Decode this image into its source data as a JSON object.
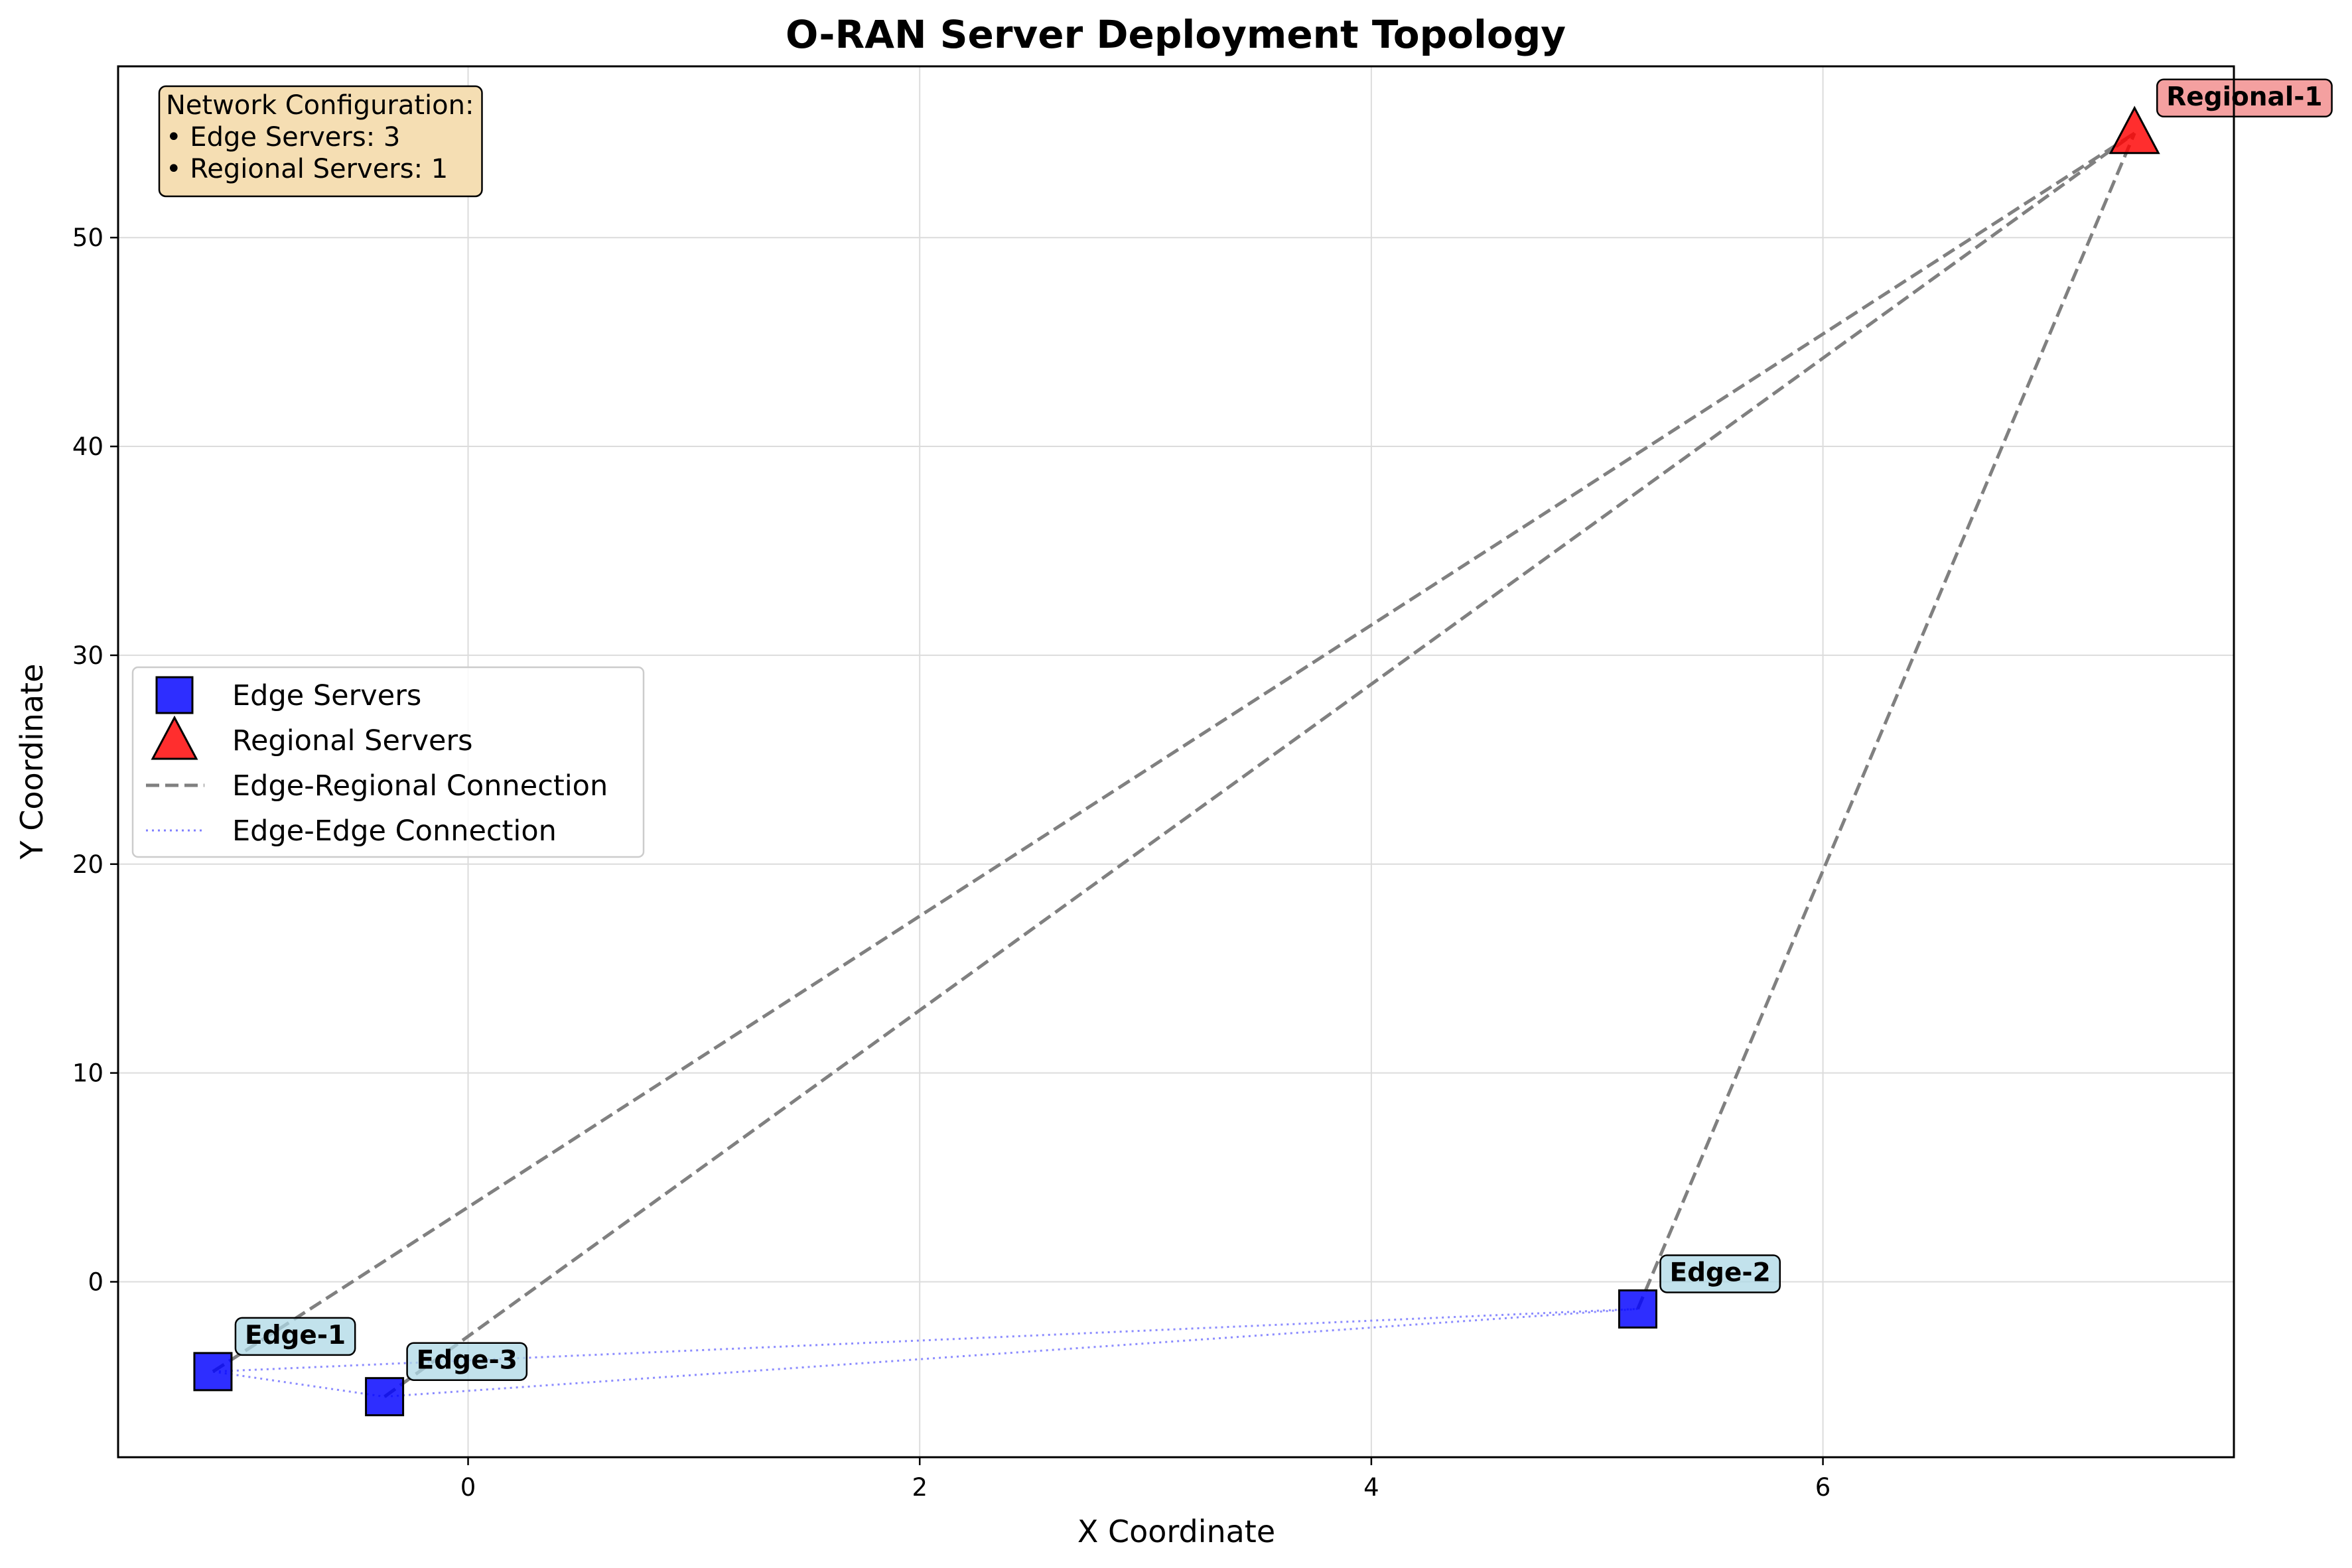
{
  "chart_data": {
    "type": "scatter",
    "title": "O-RAN Server Deployment Topology",
    "xlabel": "X Coordinate",
    "ylabel": "Y Coordinate",
    "xlim": [
      -1.55,
      7.82
    ],
    "ylim": [
      -8.4,
      58.2
    ],
    "xticks": [
      0,
      2,
      4,
      6
    ],
    "yticks": [
      0,
      10,
      20,
      30,
      40,
      50
    ],
    "grid": true,
    "legend_position": "center-left",
    "legend": [
      {
        "label": "Edge Servers",
        "kind": "square",
        "color": "#0000ff"
      },
      {
        "label": "Regional Servers",
        "kind": "triangle",
        "color": "#ff0000"
      },
      {
        "label": "Edge-Regional Connection",
        "kind": "dashed",
        "color": "#808080"
      },
      {
        "label": "Edge-Edge Connection",
        "kind": "dotted",
        "color": "#8080ff"
      }
    ],
    "edge_servers": [
      {
        "name": "Edge-1",
        "x": -1.13,
        "y": -4.3
      },
      {
        "name": "Edge-2",
        "x": 5.18,
        "y": -1.3
      },
      {
        "name": "Edge-3",
        "x": -0.37,
        "y": -5.5
      }
    ],
    "regional_servers": [
      {
        "name": "Regional-1",
        "x": 7.38,
        "y": 55.0
      }
    ],
    "edge_regional_connections": [
      [
        "Edge-1",
        "Regional-1"
      ],
      [
        "Edge-2",
        "Regional-1"
      ],
      [
        "Edge-3",
        "Regional-1"
      ]
    ],
    "edge_edge_connections": [
      [
        "Edge-1",
        "Edge-2"
      ],
      [
        "Edge-1",
        "Edge-3"
      ],
      [
        "Edge-2",
        "Edge-3"
      ]
    ],
    "annotation": {
      "lines": [
        "Network Configuration:",
        "• Edge Servers: 3",
        "• Regional Servers: 1"
      ]
    },
    "colors": {
      "edge_fill": "#0000ff",
      "regional_fill": "#ff0000",
      "edge_label_bg": "#add8e6",
      "regional_label_bg": "#f08080",
      "info_bg": "#f5deb3",
      "connection_dashed": "#808080",
      "connection_dotted": "#8080ff"
    }
  }
}
